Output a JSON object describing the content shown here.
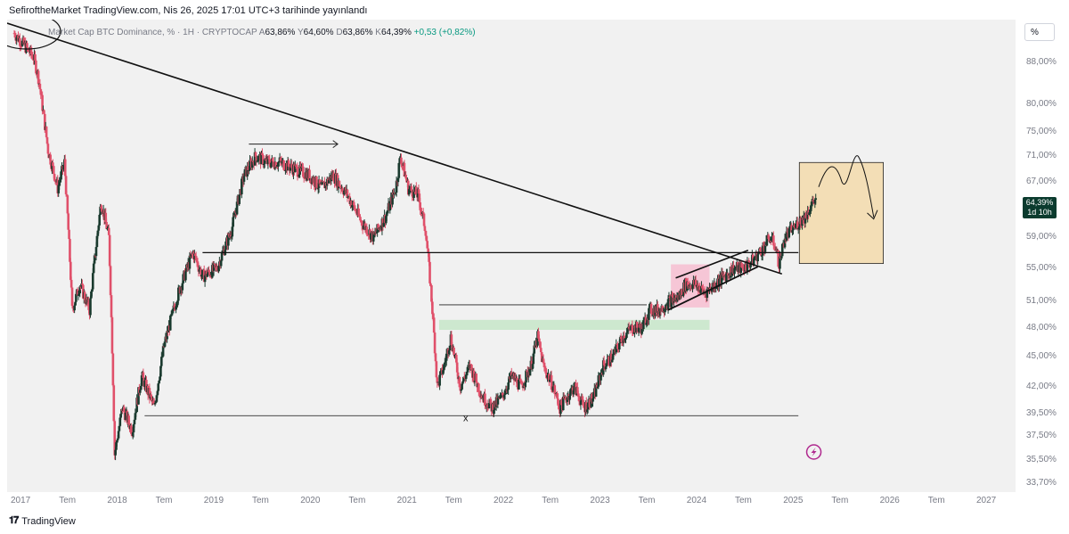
{
  "header": {
    "published": "SefiroftheMarket TradingView.com, Nis 26, 2025 17:01 UTC+3 tarihinde yayınlandı"
  },
  "legend": {
    "symbol": "Market Cap BTC Dominance, % · 1H · CRYPTOCAP",
    "open_label": "A",
    "open": "63,86%",
    "high_label": "Y",
    "high": "64,60%",
    "low_label": "D",
    "low": "63,86%",
    "close_label": "K",
    "close": "64,39%",
    "change": "+0,53 (+0,82%)"
  },
  "scale_button": "%",
  "price_badge": {
    "price": "64,39%",
    "countdown": "1d 10h"
  },
  "footer": {
    "brand": "TradingView"
  },
  "annotation_x": "x",
  "colors": {
    "up": "#089981",
    "down": "#f23645",
    "up_candle": "#1a3a2e",
    "down_candle": "#e0506a",
    "green_zone": "#cde8cf",
    "pink_zone": "#f6c6d6",
    "orange_zone": "#f3deb6"
  },
  "chart_data": {
    "type": "candlestick",
    "title": "Market Cap BTC Dominance, %",
    "scale": "log",
    "ylim": [
      33.7,
      95
    ],
    "xlim": [
      2017.0,
      2027.0
    ],
    "y_ticks": [
      "88,00%",
      "80,00%",
      "75,00%",
      "71,00%",
      "67,00%",
      "59,00%",
      "55,00%",
      "51,00%",
      "48,00%",
      "45,00%",
      "42,00%",
      "39,50%",
      "37,50%",
      "35,50%",
      "33,70%"
    ],
    "y_tick_values": [
      88,
      80,
      75,
      71,
      67,
      59,
      55,
      51,
      48,
      45,
      42,
      39.5,
      37.5,
      35.5,
      33.7
    ],
    "x_ticks": [
      "2017",
      "Tem",
      "2018",
      "Tem",
      "2019",
      "Tem",
      "2020",
      "Tem",
      "2021",
      "Tem",
      "2022",
      "Tem",
      "2023",
      "Tem",
      "2024",
      "Tem",
      "2025",
      "Tem",
      "2026",
      "Tem",
      "2027"
    ],
    "x_tick_values": [
      2017.0,
      2017.5,
      2018.0,
      2018.5,
      2019.0,
      2019.5,
      2020.0,
      2020.5,
      2021.0,
      2021.5,
      2022.0,
      2022.5,
      2023.0,
      2023.5,
      2024.0,
      2024.5,
      2025.0,
      2025.5,
      2026.0,
      2026.5,
      2027.0
    ],
    "price_path": [
      [
        2017.0,
        94
      ],
      [
        2017.2,
        89
      ],
      [
        2017.25,
        85
      ],
      [
        2017.35,
        72
      ],
      [
        2017.45,
        66
      ],
      [
        2017.52,
        70
      ],
      [
        2017.6,
        50
      ],
      [
        2017.68,
        53
      ],
      [
        2017.78,
        50
      ],
      [
        2017.9,
        64
      ],
      [
        2017.98,
        59
      ],
      [
        2018.04,
        36
      ],
      [
        2018.12,
        40
      ],
      [
        2018.22,
        38
      ],
      [
        2018.32,
        43
      ],
      [
        2018.45,
        40
      ],
      [
        2018.55,
        46
      ],
      [
        2018.7,
        52
      ],
      [
        2018.85,
        57
      ],
      [
        2018.95,
        54
      ],
      [
        2019.1,
        55
      ],
      [
        2019.25,
        60
      ],
      [
        2019.38,
        68
      ],
      [
        2019.5,
        71
      ],
      [
        2019.62,
        70
      ],
      [
        2019.75,
        70
      ],
      [
        2019.9,
        69
      ],
      [
        2020.05,
        68
      ],
      [
        2020.18,
        66
      ],
      [
        2020.3,
        68
      ],
      [
        2020.45,
        65
      ],
      [
        2020.6,
        61
      ],
      [
        2020.72,
        59
      ],
      [
        2020.85,
        62
      ],
      [
        2020.95,
        66
      ],
      [
        2021.0,
        71
      ],
      [
        2021.08,
        66
      ],
      [
        2021.18,
        65
      ],
      [
        2021.26,
        60
      ],
      [
        2021.33,
        50
      ],
      [
        2021.38,
        42
      ],
      [
        2021.45,
        44
      ],
      [
        2021.52,
        47
      ],
      [
        2021.62,
        42
      ],
      [
        2021.72,
        44
      ],
      [
        2021.85,
        41
      ],
      [
        2021.95,
        40
      ],
      [
        2022.05,
        41
      ],
      [
        2022.15,
        43
      ],
      [
        2022.25,
        42
      ],
      [
        2022.35,
        44
      ],
      [
        2022.42,
        47
      ],
      [
        2022.48,
        44
      ],
      [
        2022.58,
        42
      ],
      [
        2022.65,
        40
      ],
      [
        2022.72,
        41
      ],
      [
        2022.8,
        42
      ],
      [
        2022.9,
        40
      ],
      [
        2023.0,
        41
      ],
      [
        2023.1,
        44
      ],
      [
        2023.2,
        45
      ],
      [
        2023.3,
        47
      ],
      [
        2023.4,
        48
      ],
      [
        2023.5,
        48
      ],
      [
        2023.58,
        50
      ],
      [
        2023.68,
        50
      ],
      [
        2023.78,
        51
      ],
      [
        2023.88,
        51.5
      ],
      [
        2023.95,
        53
      ],
      [
        2024.05,
        53
      ],
      [
        2024.15,
        52
      ],
      [
        2024.25,
        53
      ],
      [
        2024.35,
        54
      ],
      [
        2024.45,
        55
      ],
      [
        2024.55,
        55
      ],
      [
        2024.65,
        56
      ],
      [
        2024.75,
        57.5
      ],
      [
        2024.82,
        59
      ],
      [
        2024.88,
        58
      ],
      [
        2024.92,
        55.5
      ],
      [
        2024.98,
        59
      ],
      [
        2025.05,
        60
      ],
      [
        2025.12,
        61
      ],
      [
        2025.2,
        62
      ],
      [
        2025.25,
        63.5
      ],
      [
        2025.3,
        64.39
      ]
    ]
  }
}
